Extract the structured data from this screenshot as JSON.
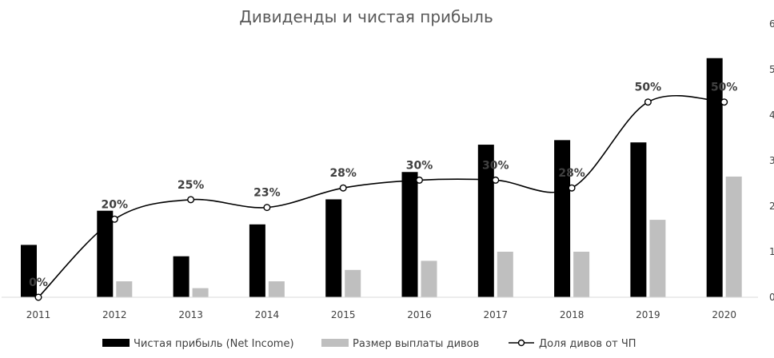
{
  "chart_data": {
    "type": "bar",
    "title": "Дивиденды и чистая прибыль",
    "categories": [
      "2011",
      "2012",
      "2013",
      "2014",
      "2015",
      "2016",
      "2017",
      "2018",
      "2019",
      "2020"
    ],
    "series": [
      {
        "name": "Чистая прибыль (Net Income)",
        "kind": "bar",
        "axis": "left",
        "color": "#000000",
        "values": [
          1.15,
          1.9,
          0.9,
          1.6,
          2.15,
          2.75,
          3.35,
          3.45,
          3.4,
          5.25
        ]
      },
      {
        "name": "Размер выплаты дивов",
        "kind": "bar",
        "axis": "left",
        "color": "#bfbfbf",
        "values": [
          0,
          0.35,
          0.2,
          0.35,
          0.6,
          0.8,
          1.0,
          1.0,
          1.7,
          2.65
        ]
      },
      {
        "name": "Доля дивов от ЧП",
        "kind": "line",
        "axis": "right",
        "color": "#000000",
        "smooth": true,
        "values": [
          0,
          20,
          25,
          23,
          28,
          30,
          30,
          28,
          50,
          50
        ],
        "labels": [
          "0%",
          "20%",
          "25%",
          "23%",
          "28%",
          "30%",
          "30%",
          "28%",
          "50%",
          "50%"
        ]
      }
    ],
    "ylim": [
      0,
      6
    ],
    "yticks": [
      "0",
      "1",
      "2",
      "3",
      "4",
      "5",
      "6"
    ],
    "y2lim": [
      0,
      70
    ],
    "grid": false,
    "legend": "bottom"
  }
}
